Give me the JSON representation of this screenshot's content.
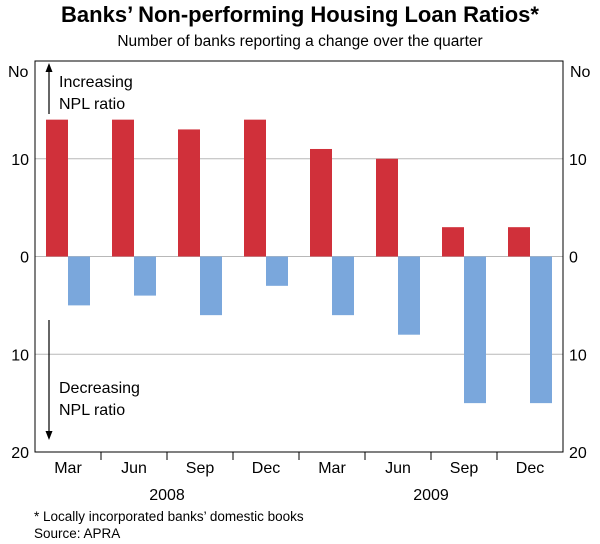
{
  "chart_data": {
    "type": "bar",
    "title": "Banks’ Non-performing Housing Loan Ratios*",
    "subtitle": "Number of banks reporting a change over the quarter",
    "categories": [
      "Mar",
      "Jun",
      "Sep",
      "Dec",
      "Mar",
      "Jun",
      "Sep",
      "Dec"
    ],
    "year_labels": [
      "2008",
      "2009"
    ],
    "series": [
      {
        "name": "Increasing NPL ratio",
        "color": "#d0303a",
        "values": [
          14,
          14,
          13,
          14,
          11,
          10,
          3,
          3
        ]
      },
      {
        "name": "Decreasing NPL ratio",
        "color": "#7aa7dc",
        "values": [
          -5,
          -4,
          -6,
          -3,
          -6,
          -8,
          -15,
          -15
        ]
      }
    ],
    "ylim": [
      -20,
      20
    ],
    "y_ticks": [
      {
        "value": 10,
        "label": "10"
      },
      {
        "value": 0,
        "label": "0"
      },
      {
        "value": -10,
        "label": "10"
      },
      {
        "value": -20,
        "label": "20"
      }
    ],
    "y_unit": "No",
    "annotations": {
      "increasing": [
        "Increasing",
        "NPL ratio"
      ],
      "decreasing": [
        "Decreasing",
        "NPL ratio"
      ]
    },
    "grid": true
  },
  "footnote": "*   Locally incorporated banks’ domestic books",
  "source": "Source: APRA"
}
